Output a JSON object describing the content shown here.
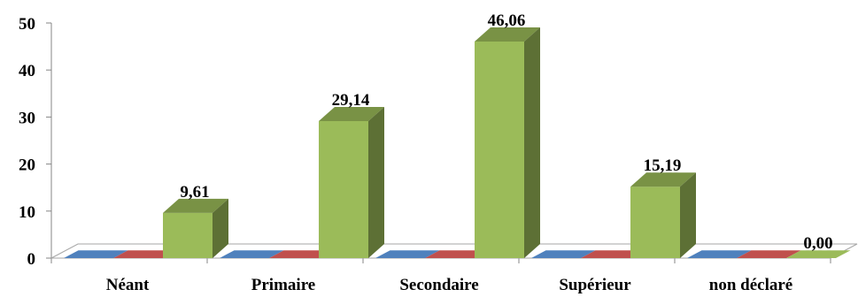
{
  "chart_data": {
    "type": "bar",
    "categories": [
      "Néant",
      "Primaire",
      "Secondaire",
      "Supérieur",
      "non déclaré"
    ],
    "series": [
      {
        "values": [
          0,
          0,
          0,
          0,
          0
        ],
        "color": "#4f81bd"
      },
      {
        "values": [
          0,
          0,
          0,
          0,
          0
        ],
        "color": "#c0504d"
      },
      {
        "values": [
          9.61,
          29.14,
          46.06,
          15.19,
          0.0
        ],
        "color": "#9bbb59"
      }
    ],
    "data_labels": [
      "9,61",
      "29,14",
      "46,06",
      "15,19",
      "0,00"
    ],
    "ylim": [
      0,
      50
    ],
    "yticks": [
      "0",
      "10",
      "20",
      "30",
      "40",
      "50"
    ],
    "grid": false,
    "style": "3d-column"
  }
}
